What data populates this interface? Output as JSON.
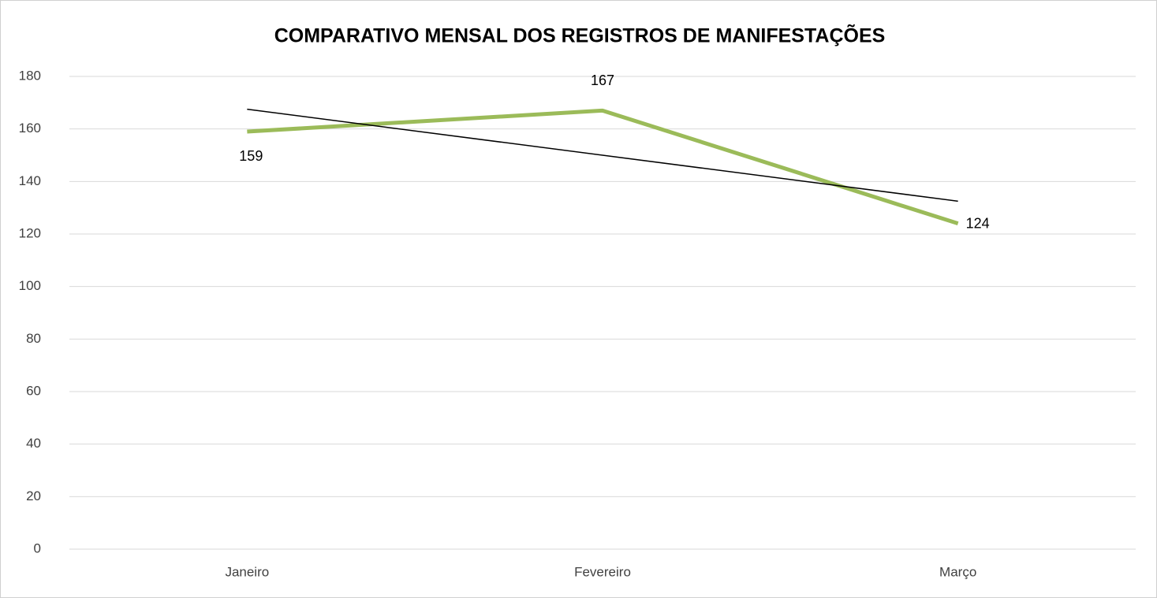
{
  "chart_data": {
    "type": "line",
    "title": "COMPARATIVO MENSAL DOS REGISTROS DE MANIFESTAÇÕES",
    "categories": [
      "Janeiro",
      "Fevereiro",
      "Março"
    ],
    "series": [
      {
        "color": "#9bbb59",
        "values": [
          159,
          167,
          124
        ]
      }
    ],
    "trend": {
      "color": "#000000",
      "values": [
        167.5,
        150,
        132.5
      ]
    },
    "ylim": [
      0,
      180
    ],
    "yticks": [
      0,
      20,
      40,
      60,
      80,
      100,
      120,
      140,
      160,
      180
    ],
    "grid": true
  }
}
